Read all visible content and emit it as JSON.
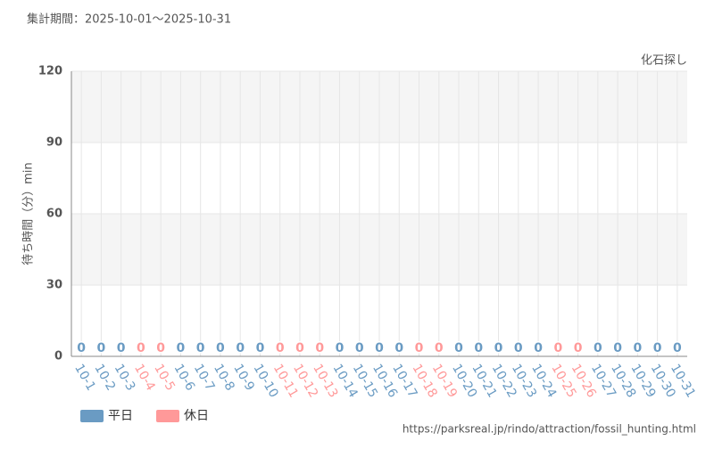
{
  "chart_data": {
    "type": "bar",
    "title": "集計期間：2025-10-01～2025-10-31",
    "subtitle": "化石探し",
    "y_label": "待ち時間（分）min",
    "source": "https://parksreal.jp/rindo/attraction/fossil_hunting.html",
    "categories": [
      "10-1",
      "10-2",
      "10-3",
      "10-4",
      "10-5",
      "10-6",
      "10-7",
      "10-8",
      "10-9",
      "10-10",
      "10-11",
      "10-12",
      "10-13",
      "10-14",
      "10-15",
      "10-16",
      "10-17",
      "10-18",
      "10-19",
      "10-20",
      "10-21",
      "10-22",
      "10-23",
      "10-24",
      "10-25",
      "10-26",
      "10-27",
      "10-28",
      "10-29",
      "10-30",
      "10-31"
    ],
    "series": [
      {
        "name": "平日",
        "color": "#6a9bc3",
        "values": [
          0,
          0,
          0,
          null,
          null,
          0,
          0,
          0,
          0,
          0,
          null,
          null,
          null,
          0,
          0,
          0,
          0,
          null,
          null,
          0,
          0,
          0,
          0,
          0,
          null,
          null,
          0,
          0,
          0,
          0,
          0
        ]
      },
      {
        "name": "休日",
        "color": "#ff9999",
        "values": [
          null,
          null,
          null,
          0,
          0,
          null,
          null,
          null,
          null,
          null,
          0,
          0,
          0,
          null,
          null,
          null,
          null,
          0,
          0,
          null,
          null,
          null,
          null,
          null,
          0,
          0,
          null,
          null,
          null,
          null,
          null
        ]
      }
    ],
    "ylim": [
      0,
      120
    ],
    "yticks": [
      0,
      30,
      60,
      90,
      120
    ],
    "grid": true,
    "legend": "bottom-left"
  }
}
